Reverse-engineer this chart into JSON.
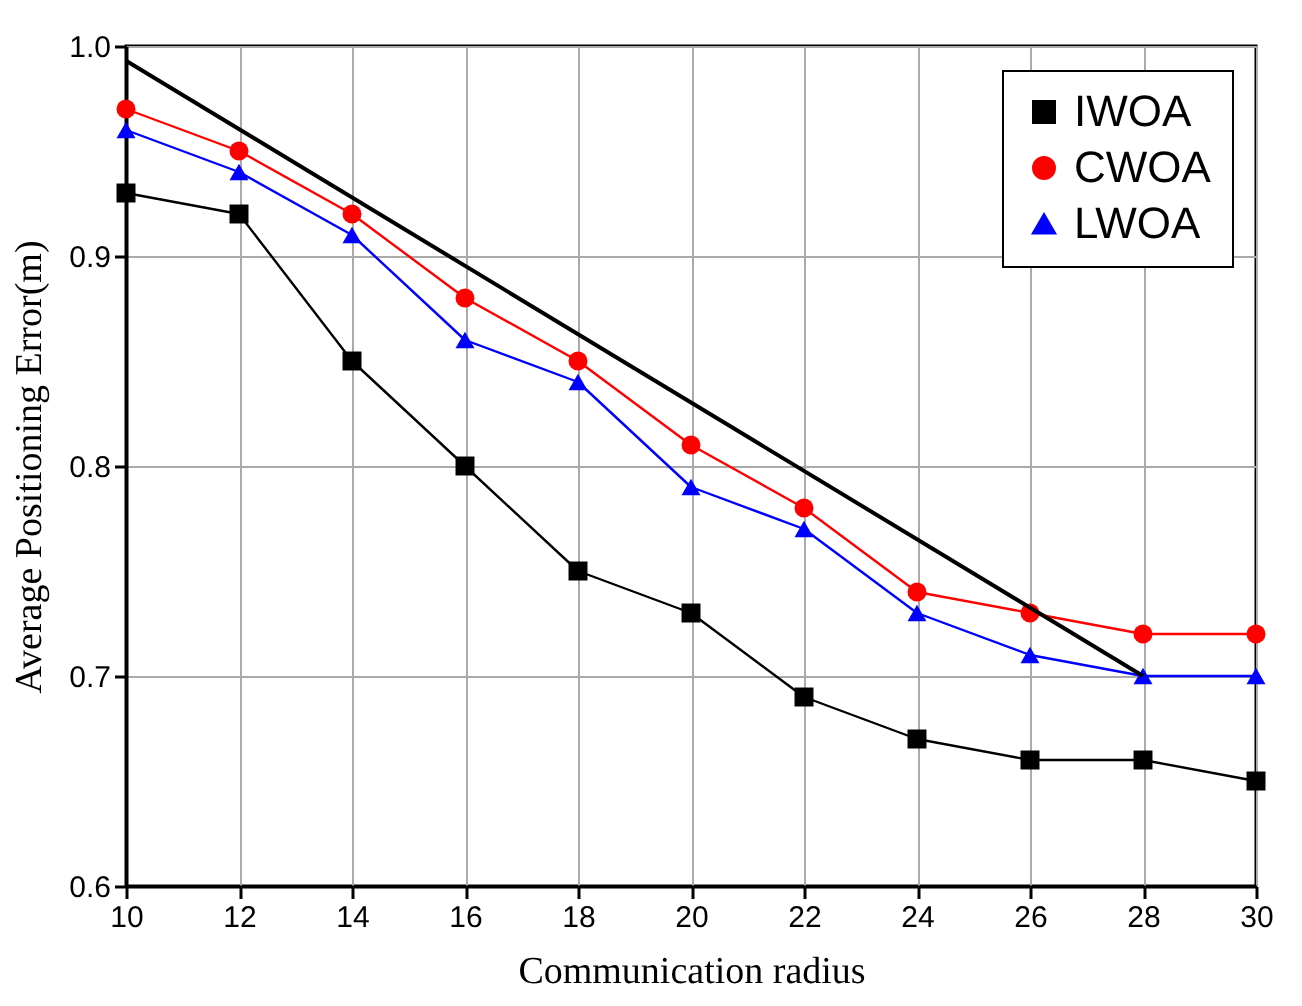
{
  "chart_data": {
    "type": "line",
    "xlabel": "Communication radius",
    "ylabel": "Average Positioning Error(m)",
    "x": [
      10,
      12,
      14,
      16,
      18,
      20,
      22,
      24,
      26,
      28,
      30
    ],
    "series": [
      {
        "name": "IWOA",
        "color": "#000000",
        "marker": "square",
        "values": [
          0.93,
          0.92,
          0.85,
          0.8,
          0.75,
          0.73,
          0.69,
          0.67,
          0.66,
          0.66,
          0.65
        ]
      },
      {
        "name": "CWOA",
        "color": "#ff0000",
        "marker": "circle",
        "values": [
          0.97,
          0.95,
          0.92,
          0.88,
          0.85,
          0.81,
          0.78,
          0.74,
          0.73,
          0.72,
          0.72
        ]
      },
      {
        "name": "LWOA",
        "color": "#0000ff",
        "marker": "triangle",
        "values": [
          0.96,
          0.94,
          0.91,
          0.86,
          0.84,
          0.79,
          0.77,
          0.73,
          0.71,
          0.7,
          0.7
        ]
      },
      {
        "type": "line",
        "color": "#000000",
        "marker": "none",
        "x": [
          10,
          28
        ],
        "values": [
          0.993,
          0.7
        ]
      }
    ],
    "xlim": [
      10,
      30
    ],
    "xticks": [
      10,
      12,
      14,
      16,
      18,
      20,
      22,
      24,
      26,
      28,
      30
    ],
    "ylim": [
      0.6,
      1.0
    ],
    "yticks": [
      0.6,
      0.7,
      0.8,
      0.9,
      {
        "value": 1,
        "label": "1.0"
      }
    ],
    "grid": true,
    "legend": "top right",
    "line_style": "solid"
  }
}
